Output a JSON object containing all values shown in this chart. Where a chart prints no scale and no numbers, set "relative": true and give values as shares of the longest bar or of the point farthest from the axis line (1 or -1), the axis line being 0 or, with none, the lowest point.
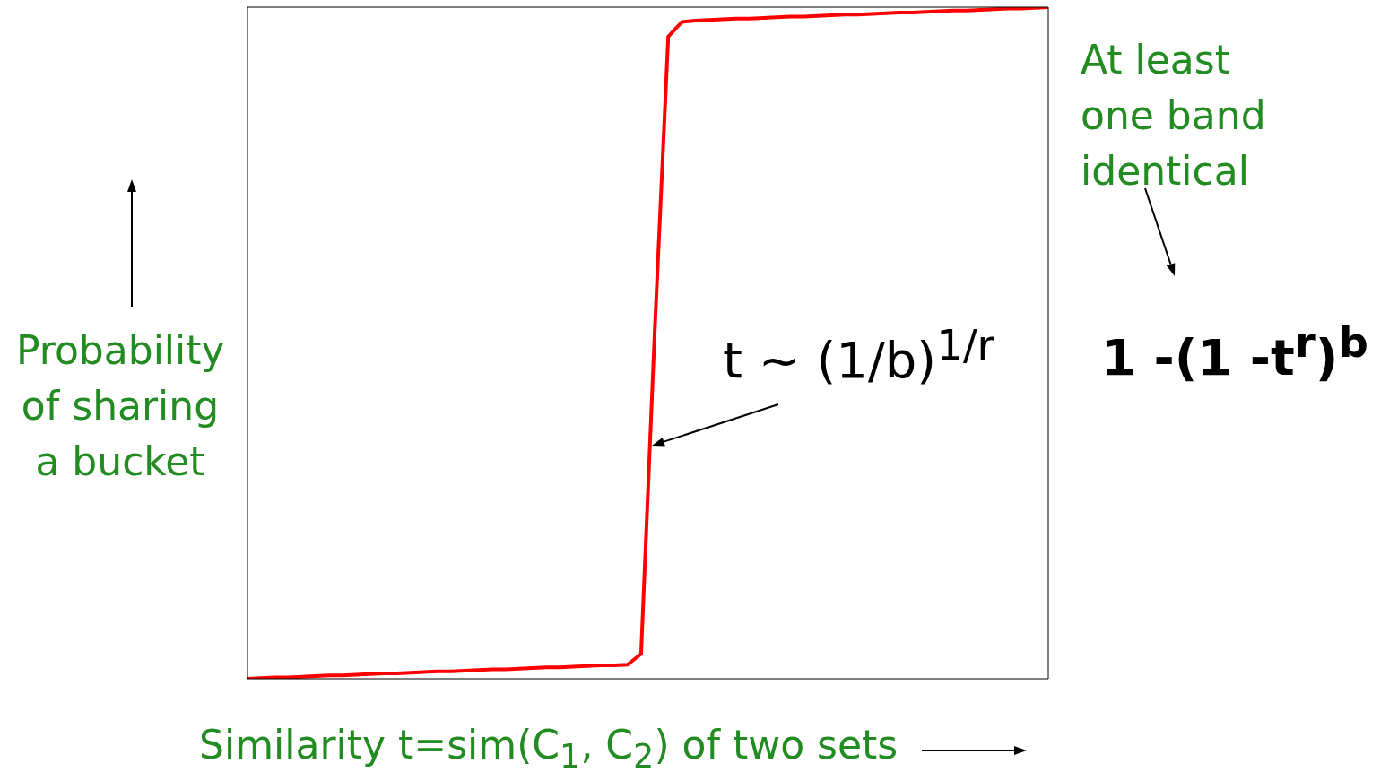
{
  "chart_data": {
    "type": "line",
    "relative": true,
    "xlabel": "Similarity t=sim(C$_{1}$, C$_{2}$) of two sets",
    "ylabel": "Probability of sharing a bucket",
    "annotations": [
      "At least one band identical",
      "t ~ (1/b)$^{1/r}$",
      "1 -(1 -t$^{r}$)$^{b}$"
    ],
    "categories": [
      null,
      null,
      null,
      null,
      null,
      null,
      null,
      null,
      null,
      null,
      null,
      null,
      null,
      null,
      null,
      null,
      null,
      null,
      null,
      null,
      null,
      null,
      null,
      null,
      null,
      null,
      null,
      null,
      null,
      null,
      null,
      null,
      null,
      null,
      null,
      null,
      null,
      null,
      null,
      null,
      null,
      null,
      null,
      null,
      null,
      null,
      null,
      null,
      null,
      null,
      null,
      null,
      null,
      null,
      null,
      null,
      null,
      null,
      null,
      null
    ],
    "series": [
      {
        "color": "#ff0000",
        "values": [
          0,
          0.001,
          0.002,
          0.002,
          0.003,
          0.004,
          0.005,
          0.005,
          0.006,
          0.007,
          0.008,
          0.008,
          0.009,
          0.01,
          0.011,
          0.011,
          0.012,
          0.013,
          0.014,
          0.014,
          0.015,
          0.016,
          0.017,
          0.017,
          0.018,
          0.019,
          0.02,
          0.02,
          0.021,
          0.037,
          0.515,
          0.956,
          0.978,
          0.98,
          0.981,
          0.982,
          0.983,
          0.983,
          0.984,
          0.985,
          0.986,
          0.986,
          0.987,
          0.988,
          0.989,
          0.989,
          0.99,
          0.991,
          0.992,
          0.992,
          0.993,
          0.994,
          0.995,
          0.995,
          0.996,
          0.997,
          0.998,
          0.998,
          0.999,
          1
        ]
      }
    ],
    "grid": false,
    "marker": "none",
    "line_style": "solid"
  }
}
